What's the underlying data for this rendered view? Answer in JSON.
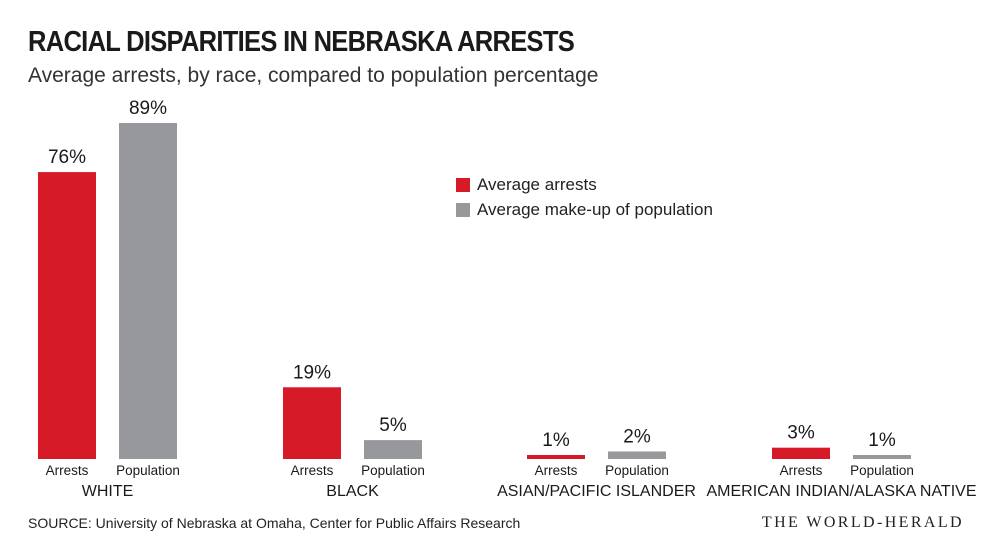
{
  "chart_data": {
    "type": "bar",
    "title": "RACIAL DISPARITIES IN NEBRASKA ARRESTS",
    "subtitle": "Average arrests, by race, compared to population percentage",
    "categories": [
      "WHITE",
      "BLACK",
      "ASIAN/PACIFIC ISLANDER",
      "AMERICAN INDIAN/ALASKA NATIVE"
    ],
    "bar_labels": [
      "Arrests",
      "Population"
    ],
    "series": [
      {
        "name": "Average arrests",
        "color": "#d71a28",
        "values": [
          76,
          19,
          1,
          3
        ],
        "labels": [
          "76%",
          "19%",
          "1%",
          "3%"
        ]
      },
      {
        "name": "Average make-up of population",
        "color": "#97989b",
        "values": [
          89,
          5,
          2,
          1
        ],
        "labels": [
          "89%",
          "5%",
          "2%",
          "1%"
        ]
      }
    ],
    "unit": "%",
    "ylim": [
      0,
      89
    ],
    "grid": false,
    "legend_position": "center-right"
  },
  "footer": {
    "source": "SOURCE: University of Nebraska at Omaha, Center for Public Affairs Research",
    "brand": "THE WORLD-HERALD"
  }
}
